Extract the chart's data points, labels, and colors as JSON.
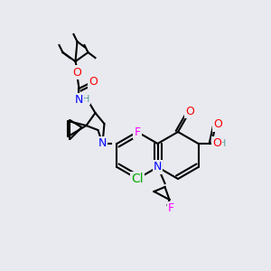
{
  "bg_color": "#e8eaf0",
  "atom_colors": {
    "N": "#0000ff",
    "O": "#ff0000",
    "F": "#ff00ff",
    "Cl": "#00aa00",
    "H": "#5f9ea0",
    "C": "#000000"
  },
  "bond_color": "#000000",
  "bond_width": 1.5,
  "font_size": 9
}
